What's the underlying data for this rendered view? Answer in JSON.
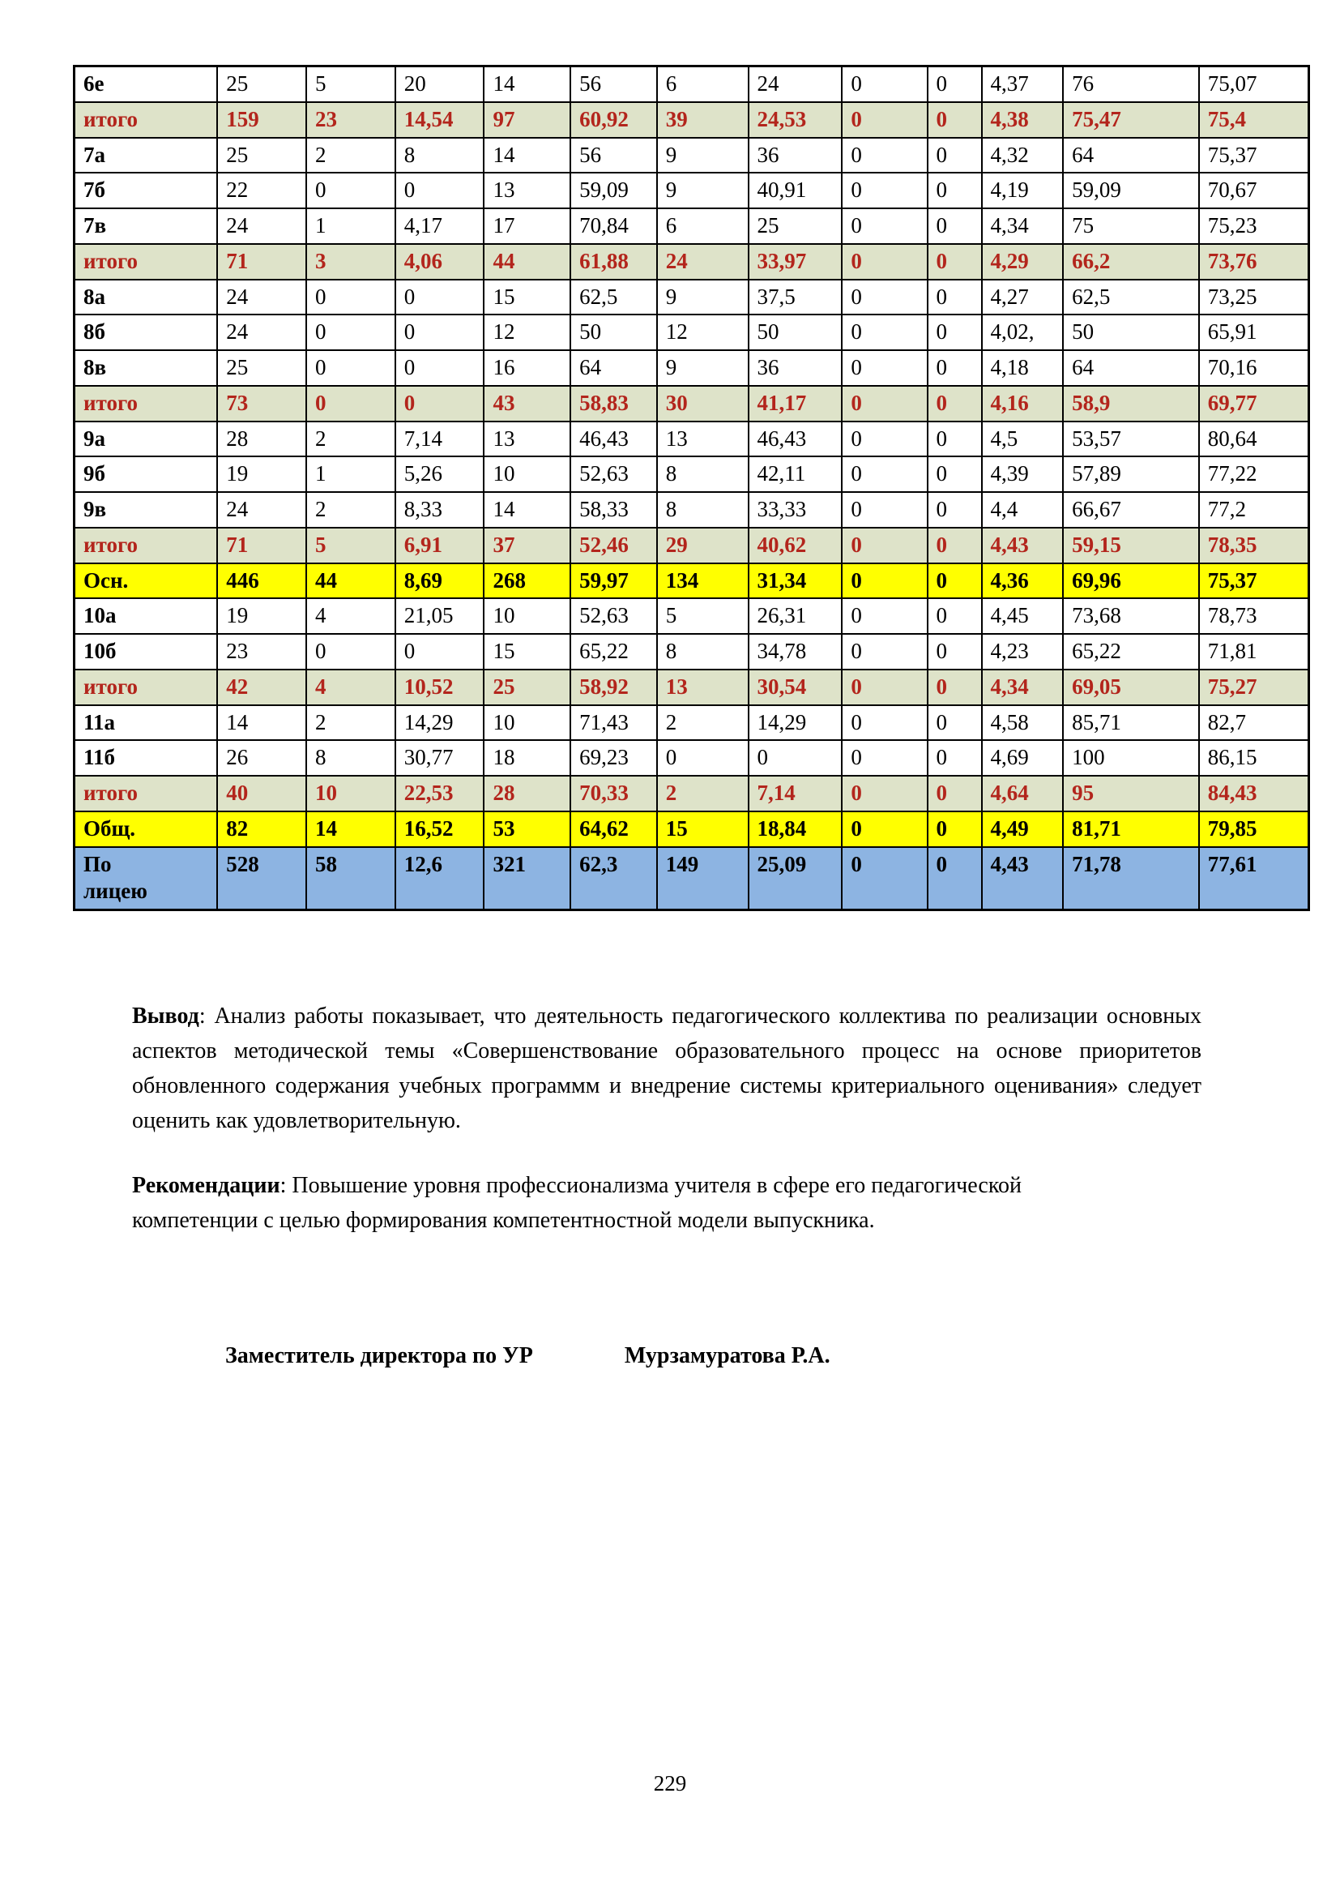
{
  "colors": {
    "itogo_bg": "#dee3c9",
    "itogo_text": "#b3251c",
    "total_bg": "#ffff00",
    "liceum_bg": "#8db4e2",
    "border": "#000000"
  },
  "table": {
    "rows": [
      {
        "label": "6е",
        "style": "plain",
        "values": [
          "25",
          "5",
          "20",
          "14",
          "56",
          "6",
          "24",
          "0",
          "0",
          "4,37",
          "76",
          "75,07"
        ]
      },
      {
        "label": "итого",
        "style": "itogo",
        "values": [
          "159",
          "23",
          "14,54",
          "97",
          "60,92",
          "39",
          "24,53",
          "0",
          "0",
          "4,38",
          "75,47",
          "75,4"
        ]
      },
      {
        "label": "7а",
        "style": "plain",
        "values": [
          "25",
          "2",
          "8",
          "14",
          "56",
          "9",
          "36",
          "0",
          "0",
          "4,32",
          "64",
          "75,37"
        ]
      },
      {
        "label": "7б",
        "style": "plain",
        "values": [
          "22",
          "0",
          "0",
          "13",
          "59,09",
          "9",
          "40,91",
          "0",
          "0",
          "4,19",
          "59,09",
          "70,67"
        ]
      },
      {
        "label": "7в",
        "style": "plain",
        "values": [
          "24",
          "1",
          "4,17",
          "17",
          "70,84",
          "6",
          "25",
          "0",
          "0",
          "4,34",
          "75",
          "75,23"
        ]
      },
      {
        "label": "итого",
        "style": "itogo",
        "values": [
          "71",
          "3",
          "4,06",
          "44",
          "61,88",
          "24",
          "33,97",
          "0",
          "0",
          "4,29",
          "66,2",
          "73,76"
        ]
      },
      {
        "label": "8а",
        "style": "plain",
        "values": [
          "24",
          "0",
          "0",
          "15",
          "62,5",
          "9",
          "37,5",
          "0",
          "0",
          "4,27",
          "62,5",
          "73,25"
        ]
      },
      {
        "label": "8б",
        "style": "plain",
        "values": [
          "24",
          "0",
          "0",
          "12",
          "50",
          "12",
          "50",
          "0",
          "0",
          "4,02,",
          "50",
          "65,91"
        ]
      },
      {
        "label": "8в",
        "style": "plain",
        "values": [
          "25",
          "0",
          "0",
          "16",
          "64",
          "9",
          "36",
          "0",
          "0",
          "4,18",
          "64",
          "70,16"
        ]
      },
      {
        "label": "итого",
        "style": "itogo",
        "values": [
          "73",
          "0",
          "0",
          "43",
          "58,83",
          "30",
          "41,17",
          "0",
          "0",
          "4,16",
          "58,9",
          "69,77"
        ]
      },
      {
        "label": "9а",
        "style": "plain",
        "values": [
          "28",
          "2",
          "7,14",
          "13",
          "46,43",
          "13",
          "46,43",
          "0",
          "0",
          "4,5",
          "53,57",
          "80,64"
        ]
      },
      {
        "label": "9б",
        "style": "plain",
        "values": [
          "19",
          "1",
          "5,26",
          "10",
          "52,63",
          "8",
          "42,11",
          "0",
          "0",
          "4,39",
          "57,89",
          "77,22"
        ]
      },
      {
        "label": "9в",
        "style": "plain",
        "values": [
          "24",
          "2",
          "8,33",
          "14",
          "58,33",
          "8",
          "33,33",
          "0",
          "0",
          "4,4",
          "66,67",
          "77,2"
        ]
      },
      {
        "label": "итого",
        "style": "itogo",
        "values": [
          "71",
          "5",
          "6,91",
          "37",
          "52,46",
          "29",
          "40,62",
          "0",
          "0",
          "4,43",
          "59,15",
          "78,35"
        ]
      },
      {
        "label": "Осн.",
        "style": "total",
        "values": [
          "446",
          "44",
          "8,69",
          "268",
          "59,97",
          "134",
          "31,34",
          "0",
          "0",
          "4,36",
          "69,96",
          "75,37"
        ]
      },
      {
        "label": "10а",
        "style": "plain",
        "values": [
          "19",
          "4",
          "21,05",
          "10",
          "52,63",
          "5",
          "26,31",
          "0",
          "0",
          "4,45",
          "73,68",
          "78,73"
        ]
      },
      {
        "label": "10б",
        "style": "plain",
        "values": [
          "23",
          "0",
          "0",
          "15",
          "65,22",
          "8",
          "34,78",
          "0",
          "0",
          "4,23",
          "65,22",
          "71,81"
        ]
      },
      {
        "label": "итого",
        "style": "itogo",
        "values": [
          "42",
          "4",
          "10,52",
          "25",
          "58,92",
          "13",
          "30,54",
          "0",
          "0",
          "4,34",
          "69,05",
          "75,27"
        ]
      },
      {
        "label": "11а",
        "style": "plain",
        "values": [
          "14",
          "2",
          "14,29",
          "10",
          "71,43",
          "2",
          "14,29",
          "0",
          "0",
          "4,58",
          "85,71",
          "82,7"
        ]
      },
      {
        "label": "11б",
        "style": "plain",
        "values": [
          "26",
          "8",
          "30,77",
          "18",
          "69,23",
          "0",
          "0",
          "0",
          "0",
          "4,69",
          "100",
          "86,15"
        ]
      },
      {
        "label": "итого",
        "style": "itogo",
        "values": [
          "40",
          "10",
          "22,53",
          "28",
          "70,33",
          "2",
          "7,14",
          "0",
          "0",
          "4,64",
          "95",
          "84,43"
        ]
      },
      {
        "label": "Общ.",
        "style": "total",
        "values": [
          "82",
          "14",
          "16,52",
          "53",
          "64,62",
          "15",
          "18,84",
          "0",
          "0",
          "4,49",
          "81,71",
          "79,85"
        ]
      },
      {
        "label": "По\nлицею",
        "style": "liceum",
        "values": [
          "528",
          "58",
          "12,6",
          "321",
          "62,3",
          "149",
          "25,09",
          "0",
          "0",
          "4,43",
          "71,78",
          "77,61"
        ]
      }
    ]
  },
  "conclusion": {
    "label": "Вывод",
    "text": ": Анализ работы показывает, что деятельность педагогического коллектива по реализации основных аспектов методической темы «Совершенствование образовательного процесс на основе приоритетов обновленного содержания учебных программм и внедрение системы критериального оценивания» следует оценить как удовлетворительную."
  },
  "recommendation": {
    "label": "Рекомендации",
    "text": ": Повышение уровня профессионализма учителя в сфере его педагогической компетенции с целью формирования компетентностной модели выпускника."
  },
  "signature": {
    "position": "Заместитель директора по УР",
    "name": "Мурзамуратова Р.А."
  },
  "page": {
    "number": "229"
  }
}
